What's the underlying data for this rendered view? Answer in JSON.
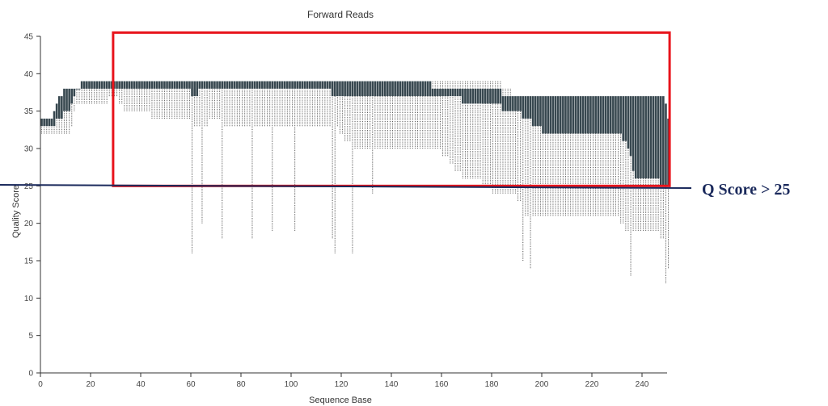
{
  "chart_data": {
    "type": "boxplot",
    "title": "Forward Reads",
    "xlabel": "Sequence Base",
    "ylabel": "Quality Score",
    "xlim": [
      0,
      250
    ],
    "ylim": [
      0,
      45
    ],
    "x_ticks": [
      "0",
      "20",
      "40",
      "60",
      "80",
      "100",
      "120",
      "140",
      "160",
      "180",
      "200",
      "220",
      "240"
    ],
    "y_ticks": [
      "0",
      "5",
      "10",
      "15",
      "20",
      "25",
      "30",
      "35",
      "40",
      "45"
    ],
    "threshold": {
      "value": 25,
      "label": "Q Score > 25"
    },
    "highlight_box": {
      "x_start": 29,
      "x_end": 251,
      "y_start": 25,
      "y_end": 45.5
    },
    "colors": {
      "iqr_fill": "#37474f",
      "whisker": "#555555",
      "axis": "#333333",
      "highlight": "#e8141c",
      "threshold_line": "#1b2a5c"
    },
    "keypoints": {
      "x": [
        1,
        5,
        8,
        12,
        15,
        18,
        22,
        26,
        30,
        34,
        38,
        42,
        46,
        50,
        54,
        58,
        62,
        66,
        70,
        74,
        78,
        82,
        86,
        90,
        94,
        98,
        102,
        106,
        110,
        114,
        118,
        122,
        126,
        130,
        134,
        138,
        142,
        146,
        150,
        154,
        158,
        162,
        166,
        170,
        174,
        178,
        182,
        186,
        190,
        194,
        198,
        202,
        206,
        210,
        214,
        218,
        222,
        226,
        230,
        234,
        238,
        242,
        246,
        249,
        251
      ],
      "low": [
        32,
        32,
        32,
        32,
        36,
        36,
        36,
        36,
        37,
        35,
        35,
        35,
        34,
        34,
        34,
        34,
        33,
        33,
        34,
        33,
        33,
        33,
        33,
        33,
        33,
        33,
        33,
        33,
        33,
        33,
        33,
        31,
        30,
        30,
        30,
        30,
        30,
        30,
        30,
        30,
        30,
        29,
        27,
        26,
        26,
        25,
        24,
        24,
        24,
        21,
        21,
        21,
        21,
        21,
        21,
        21,
        21,
        21,
        21,
        19,
        19,
        19,
        19,
        18,
        14
      ],
      "q1": [
        33,
        33,
        34,
        35,
        38,
        38,
        38,
        38,
        38,
        38,
        38,
        38,
        38,
        38,
        38,
        38,
        37,
        38,
        38,
        38,
        38,
        38,
        38,
        38,
        38,
        38,
        38,
        38,
        38,
        38,
        37,
        37,
        37,
        37,
        37,
        37,
        37,
        37,
        37,
        37,
        37,
        37,
        37,
        36,
        36,
        36,
        36,
        35,
        35,
        34,
        33,
        32,
        32,
        32,
        32,
        32,
        32,
        32,
        32,
        31,
        26,
        26,
        26,
        25,
        25
      ],
      "q3": [
        34,
        34,
        37,
        38,
        38,
        39,
        39,
        39,
        39,
        39,
        39,
        39,
        39,
        39,
        39,
        39,
        39,
        39,
        39,
        39,
        39,
        39,
        39,
        39,
        39,
        39,
        39,
        39,
        39,
        39,
        39,
        39,
        39,
        39,
        39,
        39,
        39,
        39,
        39,
        39,
        38,
        38,
        38,
        38,
        38,
        38,
        38,
        37,
        37,
        37,
        37,
        37,
        37,
        37,
        37,
        37,
        37,
        37,
        37,
        37,
        37,
        37,
        37,
        37,
        34
      ],
      "high": [
        34,
        34,
        37,
        38,
        38,
        39,
        39,
        39,
        39,
        39,
        39,
        39,
        39,
        39,
        39,
        39,
        39,
        39,
        39,
        39,
        39,
        39,
        39,
        39,
        39,
        39,
        39,
        39,
        39,
        39,
        39,
        39,
        39,
        39,
        39,
        39,
        39,
        39,
        39,
        39,
        39,
        39,
        39,
        39,
        39,
        39,
        39,
        38,
        37,
        37,
        37,
        37,
        37,
        37,
        37,
        37,
        37,
        37,
        37,
        37,
        37,
        37,
        37,
        37,
        34
      ]
    },
    "outliers": [
      {
        "x": 61,
        "low": 16
      },
      {
        "x": 65,
        "low": 20
      },
      {
        "x": 73,
        "low": 18
      },
      {
        "x": 85,
        "low": 18
      },
      {
        "x": 93,
        "low": 19
      },
      {
        "x": 102,
        "low": 19
      },
      {
        "x": 117,
        "low": 18
      },
      {
        "x": 118,
        "low": 16
      },
      {
        "x": 125,
        "low": 16
      },
      {
        "x": 133,
        "low": 24
      },
      {
        "x": 193,
        "low": 15
      },
      {
        "x": 196,
        "low": 14
      },
      {
        "x": 236,
        "low": 13
      },
      {
        "x": 250,
        "low": 12
      }
    ]
  }
}
